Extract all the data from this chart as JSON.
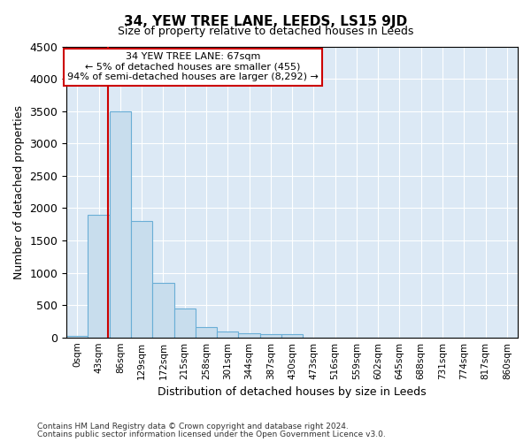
{
  "title": "34, YEW TREE LANE, LEEDS, LS15 9JD",
  "subtitle": "Size of property relative to detached houses in Leeds",
  "xlabel": "Distribution of detached houses by size in Leeds",
  "ylabel": "Number of detached properties",
  "footnote1": "Contains HM Land Registry data © Crown copyright and database right 2024.",
  "footnote2": "Contains public sector information licensed under the Open Government Licence v3.0.",
  "bar_labels": [
    "0sqm",
    "43sqm",
    "86sqm",
    "129sqm",
    "172sqm",
    "215sqm",
    "258sqm",
    "301sqm",
    "344sqm",
    "387sqm",
    "430sqm",
    "473sqm",
    "516sqm",
    "559sqm",
    "602sqm",
    "645sqm",
    "688sqm",
    "731sqm",
    "774sqm",
    "817sqm",
    "860sqm"
  ],
  "bar_values": [
    20,
    1900,
    3500,
    1800,
    850,
    450,
    160,
    90,
    65,
    55,
    45,
    0,
    0,
    0,
    0,
    0,
    0,
    0,
    0,
    0,
    0
  ],
  "bar_color": "#c8dded",
  "bar_edge_color": "#6aaed6",
  "vline_x": 1.43,
  "vline_color": "#cc0000",
  "ylim": [
    0,
    4500
  ],
  "yticks": [
    0,
    500,
    1000,
    1500,
    2000,
    2500,
    3000,
    3500,
    4000,
    4500
  ],
  "annotation_text": "  34 YEW TREE LANE: 67sqm  \n← 5% of detached houses are smaller (455)\n94% of semi-detached houses are larger (8,292) →",
  "annotation_box_color": "#ffffff",
  "annotation_box_edge": "#cc0000"
}
